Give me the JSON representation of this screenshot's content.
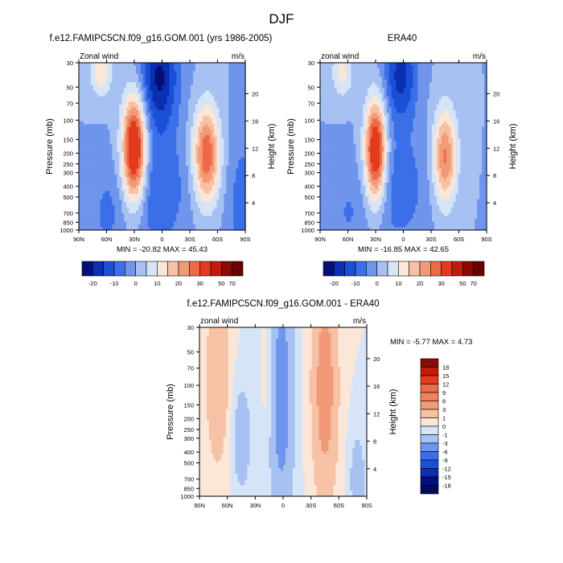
{
  "figure_title": "DJF",
  "chart_data": [
    {
      "type": "contour",
      "title": "f.e12.FAMIPC5CN.f09_g16.GOM.001 (yrs 1986-2005)",
      "left_label": "Zonal wind",
      "right_label": "m/s",
      "ylabel": "Pressure (mb)",
      "ylabel_right": "Height (km)",
      "x_ticks": [
        "90N",
        "60N",
        "30N",
        "0",
        "30S",
        "60S",
        "90S"
      ],
      "y_ticks": [
        "30",
        "50",
        "70",
        "100",
        "150",
        "200",
        "250",
        "300",
        "400",
        "500",
        "700",
        "850",
        "1000"
      ],
      "height_ticks": [
        "20",
        "16",
        "12",
        "8",
        "4"
      ],
      "min_label": "MIN = -20.82",
      "max_label": "MAX =  45.43",
      "min": -20.82,
      "max": 45.43,
      "colorbar": {
        "labels": [
          "-20",
          "-10",
          "0",
          "10",
          "20",
          "30",
          "50",
          "70"
        ],
        "colors": [
          "#050f7a",
          "#0a2fb0",
          "#1a4fd8",
          "#3b6fe8",
          "#6f95ec",
          "#a7c1f2",
          "#d6e4f7",
          "#fbe6d8",
          "#f6c1a4",
          "#f29a78",
          "#ec6a48",
          "#e33a1e",
          "#c01c0c",
          "#8a0a04",
          "#6a0000"
        ]
      }
    },
    {
      "type": "contour",
      "title": "ERA40",
      "left_label": "zonal wind",
      "right_label": "m/s",
      "ylabel": "Pressure (mb)",
      "ylabel_right": "Height (km)",
      "x_ticks": [
        "90N",
        "60N",
        "30N",
        "0",
        "30S",
        "60S",
        "90S"
      ],
      "y_ticks": [
        "30",
        "50",
        "70",
        "100",
        "150",
        "200",
        "250",
        "300",
        "400",
        "500",
        "700",
        "850",
        "1000"
      ],
      "height_ticks": [
        "20",
        "16",
        "12",
        "8",
        "4"
      ],
      "min_label": "MIN = -16.85",
      "max_label": "MAX =  42.65",
      "min": -16.85,
      "max": 42.65,
      "colorbar": {
        "labels": [
          "-20",
          "-10",
          "0",
          "10",
          "20",
          "30",
          "50",
          "70"
        ],
        "colors": [
          "#050f7a",
          "#0a2fb0",
          "#1a4fd8",
          "#3b6fe8",
          "#6f95ec",
          "#a7c1f2",
          "#d6e4f7",
          "#fbe6d8",
          "#f6c1a4",
          "#f29a78",
          "#ec6a48",
          "#e33a1e",
          "#c01c0c",
          "#8a0a04",
          "#6a0000"
        ]
      }
    },
    {
      "type": "contour",
      "title": "f.e12.FAMIPC5CN.f09_g16.GOM.001 - ERA40",
      "left_label": "zonal wind",
      "right_label": "m/s",
      "ylabel": "Pressure (mb)",
      "ylabel_right": "Height (km)",
      "x_ticks": [
        "90N",
        "60N",
        "30N",
        "0",
        "30S",
        "60S",
        "90S"
      ],
      "y_ticks": [
        "30",
        "50",
        "70",
        "100",
        "150",
        "200",
        "250",
        "300",
        "400",
        "500",
        "700",
        "850",
        "1000"
      ],
      "height_ticks": [
        "20",
        "16",
        "12",
        "8",
        "4"
      ],
      "min_label": "MIN =  -5.77",
      "max_label": "MAX =   4.73",
      "min": -5.77,
      "max": 4.73,
      "colorbar": {
        "labels": [
          "18",
          "15",
          "12",
          "9",
          "6",
          "3",
          "1",
          "0",
          "-1",
          "-3",
          "-6",
          "-9",
          "-12",
          "-15",
          "-18"
        ],
        "colors": [
          "#8a0a04",
          "#c01c0c",
          "#e33a1e",
          "#ec6a48",
          "#f0825c",
          "#f29a78",
          "#f6c1a4",
          "#fbe6d8",
          "#d6e4f7",
          "#a7c1f2",
          "#6f95ec",
          "#3b6fe8",
          "#1a4fd8",
          "#0a2fb0",
          "#050f7a",
          "#030a5a"
        ]
      }
    }
  ]
}
